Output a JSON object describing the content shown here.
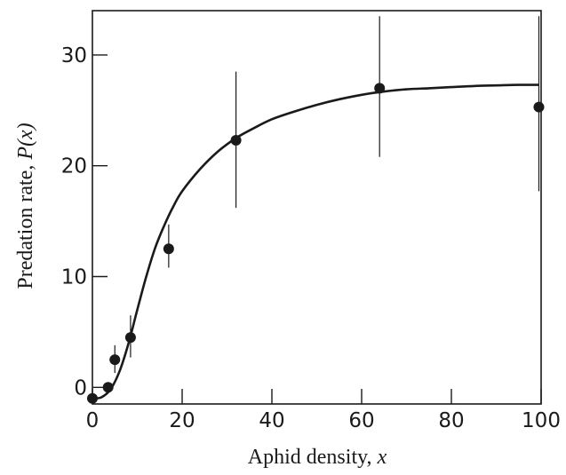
{
  "chart_data": {
    "type": "scatter",
    "xlabel": "Aphid density, ",
    "xlabel_var": "x",
    "ylabel": "Predation rate, ",
    "ylabel_var": "P(x)",
    "xlim": [
      0,
      100
    ],
    "ylim": [
      -1.5,
      34
    ],
    "xticks": [
      0,
      20,
      40,
      60,
      80,
      100
    ],
    "yticks": [
      0,
      10,
      20,
      30
    ],
    "grid": false,
    "series": [
      {
        "kind": "points-with-error-bars",
        "x": [
          0,
          3.5,
          5,
          8.5,
          17,
          32,
          64,
          99.5
        ],
        "y": [
          -1,
          0,
          2.5,
          4.5,
          12.5,
          22.3,
          27,
          25.3
        ],
        "err_low": [
          -1,
          0,
          1.3,
          2.7,
          10.8,
          16.2,
          20.8,
          17.7
        ],
        "err_high": [
          -1,
          0,
          3.8,
          6.5,
          14.7,
          28.5,
          33.5,
          33.5
        ]
      },
      {
        "kind": "fitted-curve",
        "x": [
          0,
          2,
          4,
          6,
          8,
          10,
          12,
          14,
          16,
          18,
          20,
          24,
          28,
          32,
          36,
          40,
          45,
          50,
          55,
          60,
          65,
          70,
          75,
          80,
          85,
          90,
          95,
          99.5
        ],
        "y": [
          -1,
          -0.9,
          -0.2,
          1.4,
          3.9,
          7.0,
          10.0,
          12.6,
          14.6,
          16.3,
          17.7,
          19.7,
          21.3,
          22.5,
          23.4,
          24.2,
          24.9,
          25.5,
          26.0,
          26.4,
          26.7,
          26.9,
          27.0,
          27.1,
          27.2,
          27.25,
          27.3,
          27.3
        ]
      }
    ]
  }
}
